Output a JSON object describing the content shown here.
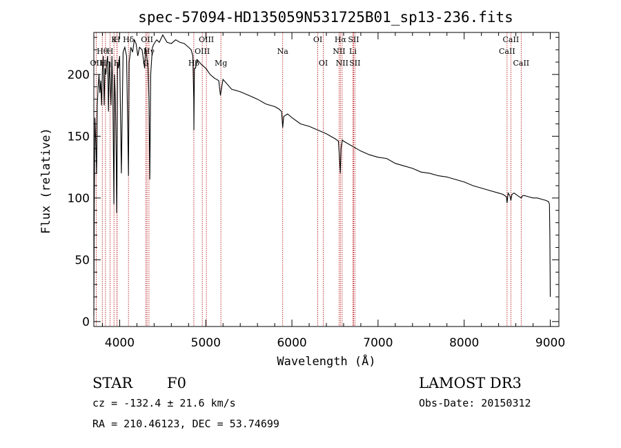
{
  "header": {
    "title": "spec-57094-HD135059N531725B01_sp13-236.fits"
  },
  "info": {
    "object_class": "STAR",
    "subclass": "F0",
    "cz": "cz = -132.4 ± 21.6 km/s",
    "coords": "RA = 210.46123, DEC =  53.74699",
    "survey": "LAMOST DR3",
    "obs_date": "Obs-Date: 20150312"
  },
  "chart_data": {
    "type": "line",
    "title": "spec-57094-HD135059N531725B01_sp13-236.fits",
    "xlabel": "Wavelength (Å)",
    "ylabel": "Flux (relative)",
    "xlim": [
      3700,
      9100
    ],
    "ylim": [
      -4,
      234
    ],
    "xticks": [
      4000,
      5000,
      6000,
      7000,
      8000,
      9000
    ],
    "yticks": [
      0,
      50,
      100,
      150,
      200
    ],
    "grid": false,
    "colors": {
      "spectrum": "#000000",
      "line_marker": "#b00000"
    },
    "series": [
      {
        "name": "spectrum",
        "x": [
          3700,
          3705,
          3712,
          3718,
          3725,
          3732,
          3740,
          3750,
          3760,
          3770,
          3780,
          3790,
          3800,
          3810,
          3820,
          3830,
          3840,
          3850,
          3860,
          3870,
          3880,
          3890,
          3900,
          3910,
          3920,
          3930,
          3933,
          3940,
          3950,
          3960,
          3965,
          3968,
          3975,
          3985,
          4000,
          4020,
          4040,
          4060,
          4080,
          4095,
          4102,
          4110,
          4130,
          4150,
          4170,
          4190,
          4210,
          4230,
          4260,
          4290,
          4300,
          4310,
          4330,
          4340,
          4350,
          4360,
          4380,
          4400,
          4430,
          4460,
          4500,
          4550,
          4600,
          4650,
          4700,
          4750,
          4800,
          4830,
          4850,
          4860,
          4862,
          4868,
          4880,
          4900,
          4950,
          5000,
          5050,
          5100,
          5150,
          5170,
          5185,
          5200,
          5250,
          5300,
          5400,
          5500,
          5600,
          5700,
          5800,
          5850,
          5880,
          5893,
          5905,
          5950,
          6000,
          6100,
          6200,
          6300,
          6400,
          6450,
          6500,
          6540,
          6555,
          6563,
          6570,
          6585,
          6600,
          6700,
          6800,
          6900,
          7000,
          7100,
          7200,
          7300,
          7400,
          7500,
          7600,
          7700,
          7800,
          7900,
          8000,
          8100,
          8200,
          8300,
          8400,
          8450,
          8490,
          8498,
          8510,
          8530,
          8542,
          8555,
          8580,
          8620,
          8662,
          8680,
          8700,
          8750,
          8800,
          8850,
          8900,
          8950,
          8980,
          8990,
          8995,
          9000
        ],
        "y": [
          5,
          95,
          165,
          155,
          140,
          120,
          175,
          190,
          200,
          185,
          195,
          175,
          205,
          215,
          175,
          205,
          200,
          210,
          215,
          170,
          210,
          195,
          175,
          215,
          185,
          120,
          95,
          200,
          180,
          130,
          88,
          110,
          210,
          205,
          215,
          120,
          218,
          222,
          215,
          150,
          118,
          210,
          222,
          218,
          228,
          225,
          215,
          222,
          220,
          205,
          222,
          218,
          205,
          180,
          115,
          200,
          222,
          225,
          228,
          226,
          232,
          226,
          225,
          228,
          226,
          225,
          222,
          220,
          215,
          180,
          155,
          205,
          205,
          212,
          208,
          205,
          200,
          197,
          195,
          183,
          190,
          196,
          192,
          188,
          186,
          183,
          180,
          176,
          174,
          172,
          170,
          157,
          166,
          168,
          165,
          160,
          158,
          155,
          152,
          150,
          148,
          146,
          130,
          120,
          140,
          147,
          146,
          142,
          138,
          135,
          133,
          132,
          128,
          126,
          124,
          121,
          120,
          118,
          117,
          115,
          113,
          110,
          108,
          106,
          104,
          103,
          101,
          96,
          104,
          102,
          98,
          103,
          104,
          102,
          100,
          102,
          102,
          101,
          100,
          100,
          99,
          98,
          97,
          95,
          70,
          20
        ]
      }
    ],
    "spectral_lines": [
      {
        "label": "OII",
        "wavelength": 3727,
        "row": 3
      },
      {
        "label": "Hθ",
        "wavelength": 3798,
        "row": 2
      },
      {
        "label": "Hη",
        "wavelength": 3835,
        "row": 3
      },
      {
        "label": "H",
        "wavelength": 3889,
        "row": 2
      },
      {
        "label": "K",
        "wavelength": 3934,
        "row": 1
      },
      {
        "label": "H",
        "wavelength": 3969,
        "row": 1
      },
      {
        "label": "H",
        "wavelength": 3970,
        "row": 3
      },
      {
        "label": "Hδ",
        "wavelength": 4102,
        "row": 1
      },
      {
        "label": "OII",
        "wavelength": 4318,
        "row": 1
      },
      {
        "label": "G",
        "wavelength": 4304,
        "row": 3
      },
      {
        "label": "Hγ",
        "wavelength": 4340,
        "row": 2
      },
      {
        "label": "Hβ",
        "wavelength": 4861,
        "row": 3
      },
      {
        "label": "OIII",
        "wavelength": 4959,
        "row": 2
      },
      {
        "label": "OIII",
        "wavelength": 5007,
        "row": 1
      },
      {
        "label": "Mg",
        "wavelength": 5175,
        "row": 3
      },
      {
        "label": "Na",
        "wavelength": 5893,
        "row": 2
      },
      {
        "label": "OI",
        "wavelength": 6300,
        "row": 1
      },
      {
        "label": "OI",
        "wavelength": 6364,
        "row": 3
      },
      {
        "label": "Hα",
        "wavelength": 6563,
        "row": 1
      },
      {
        "label": "NII",
        "wavelength": 6548,
        "row": 2
      },
      {
        "label": "NII",
        "wavelength": 6583,
        "row": 3
      },
      {
        "label": "SII",
        "wavelength": 6716,
        "row": 1
      },
      {
        "label": "Li",
        "wavelength": 6708,
        "row": 2
      },
      {
        "label": "SII",
        "wavelength": 6731,
        "row": 3
      },
      {
        "label": "CaII",
        "wavelength": 8542,
        "row": 1
      },
      {
        "label": "CaII",
        "wavelength": 8498,
        "row": 2
      },
      {
        "label": "CaII",
        "wavelength": 8662,
        "row": 3
      }
    ]
  }
}
